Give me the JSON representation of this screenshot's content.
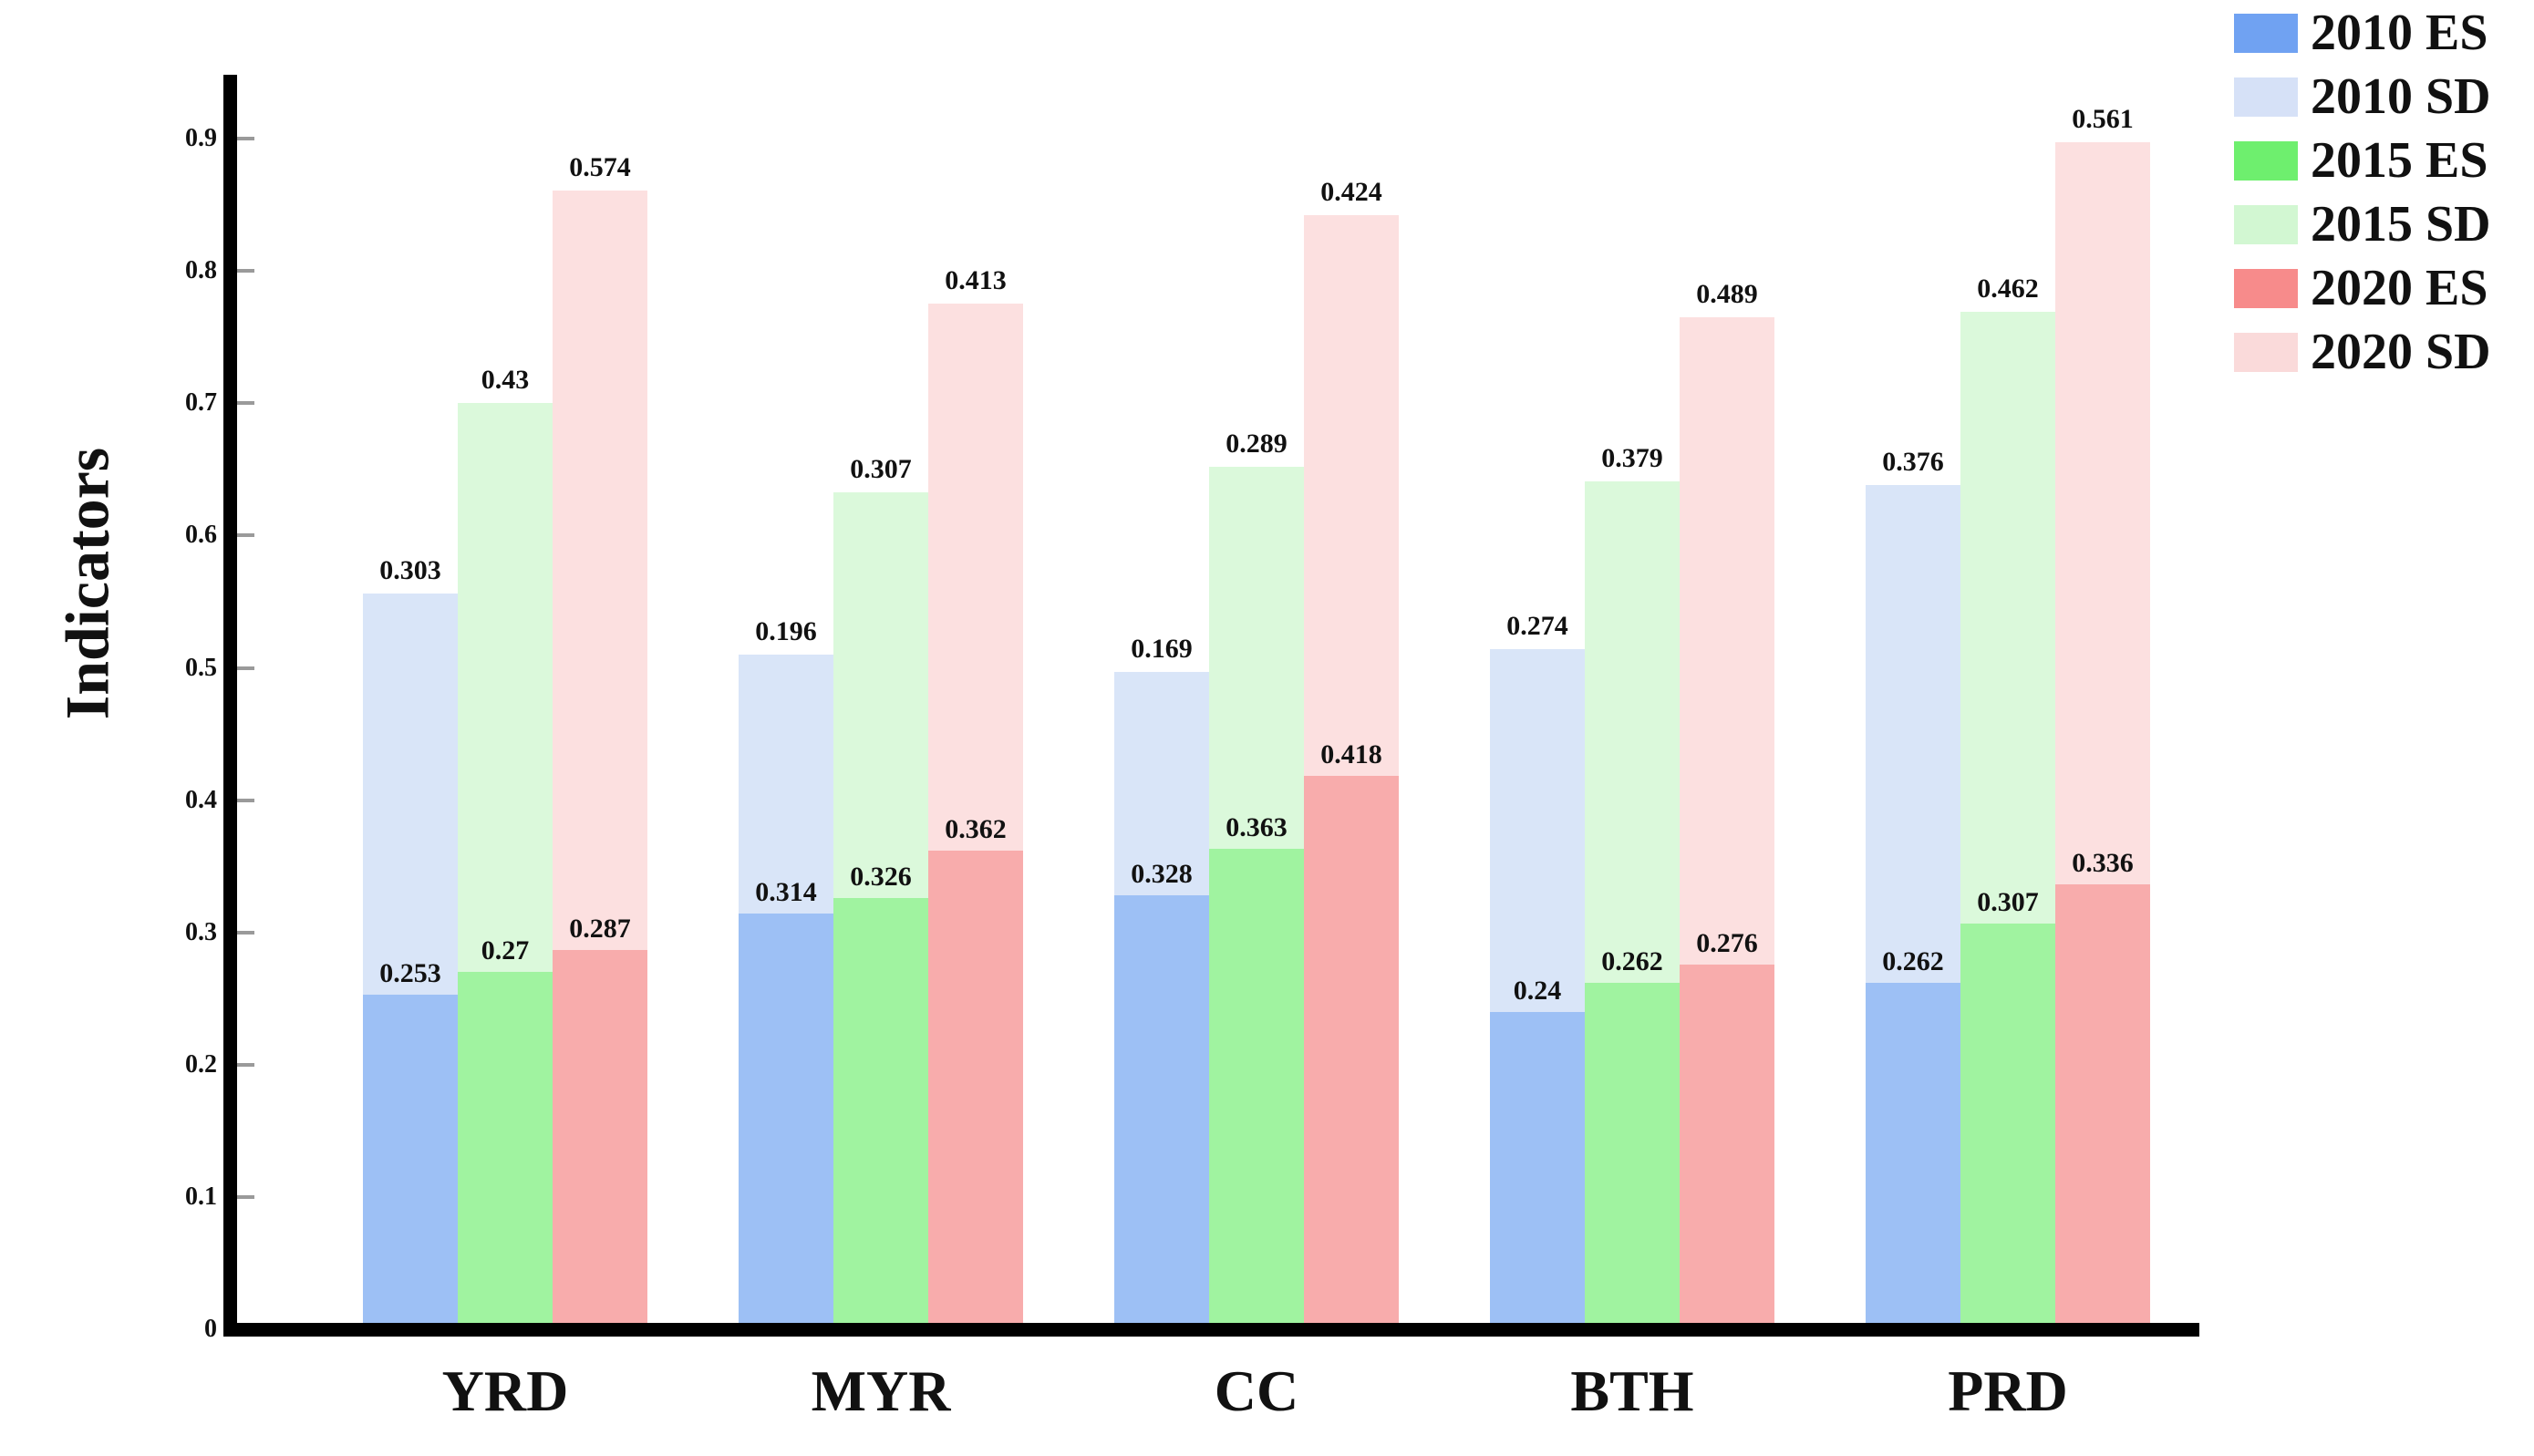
{
  "chart_data": {
    "type": "bar",
    "stacked": true,
    "title": "",
    "xlabel": "",
    "ylabel": "Indicators",
    "categories": [
      "YRD",
      "MYR",
      "CC",
      "BTH",
      "PRD"
    ],
    "series": [
      {
        "name": "2010 ES",
        "color": "#9DC0F5",
        "values": [
          0.253,
          0.314,
          0.328,
          0.24,
          0.262
        ]
      },
      {
        "name": "2010 SD",
        "color": "#D9E5F8",
        "values": [
          0.303,
          0.196,
          0.169,
          0.274,
          0.376
        ]
      },
      {
        "name": "2015 ES",
        "color": "#A0F3A0",
        "values": [
          0.27,
          0.326,
          0.363,
          0.262,
          0.307
        ]
      },
      {
        "name": "2015 SD",
        "color": "#DBF9DB",
        "values": [
          0.43,
          0.307,
          0.289,
          0.379,
          0.462
        ]
      },
      {
        "name": "2020 ES",
        "color": "#F8ACAC",
        "values": [
          0.287,
          0.362,
          0.418,
          0.276,
          0.336
        ]
      },
      {
        "name": "2020 SD",
        "color": "#FCE0E0",
        "values": [
          0.574,
          0.413,
          0.424,
          0.489,
          0.561
        ]
      }
    ],
    "stacks": [
      [
        "2010 ES",
        "2010 SD"
      ],
      [
        "2015 ES",
        "2015 SD"
      ],
      [
        "2020 ES",
        "2020 SD"
      ]
    ],
    "bar_value_labels": true,
    "ylim": [
      0,
      0.95
    ],
    "grid": false,
    "legend_position": "top-right"
  },
  "y_axis": {
    "title": "Indicators",
    "tick_labels": [
      "0",
      "0.1",
      "0.2",
      "0.3",
      "0.4",
      "0.5",
      "0.6",
      "0.7",
      "0.8",
      "0.9"
    ],
    "tick_values": [
      0,
      0.1,
      0.2,
      0.3,
      0.4,
      0.5,
      0.6,
      0.7,
      0.8,
      0.9
    ]
  },
  "legend": {
    "entries": [
      {
        "label": "2010 ES",
        "color": "#70A2F2"
      },
      {
        "label": "2010 SD",
        "color": "#D6E1F7"
      },
      {
        "label": "2015 ES",
        "color": "#6EEF6E"
      },
      {
        "label": "2015 SD",
        "color": "#D2F7D2"
      },
      {
        "label": "2020 ES",
        "color": "#F78B8B"
      },
      {
        "label": "2020 SD",
        "color": "#FADADA"
      }
    ]
  }
}
